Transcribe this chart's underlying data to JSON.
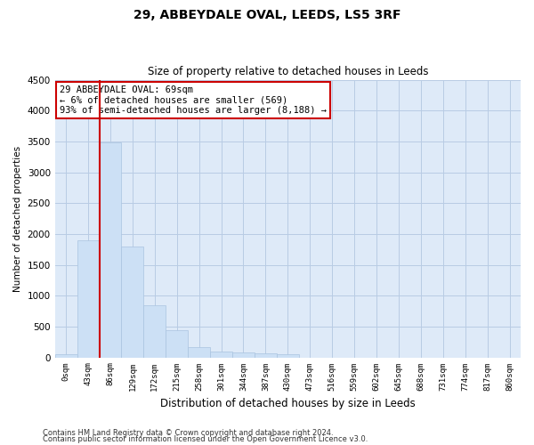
{
  "title": "29, ABBEYDALE OVAL, LEEDS, LS5 3RF",
  "subtitle": "Size of property relative to detached houses in Leeds",
  "xlabel": "Distribution of detached houses by size in Leeds",
  "ylabel": "Number of detached properties",
  "bar_color": "#cce0f5",
  "bar_edge_color": "#aac4e0",
  "grid_color": "#c8d4e8",
  "background_color": "#deeaf8",
  "vline_color": "#cc0000",
  "annotation_text": "29 ABBEYDALE OVAL: 69sqm\n← 6% of detached houses are smaller (569)\n93% of semi-detached houses are larger (8,188) →",
  "annotation_box_color": "#ffffff",
  "annotation_border_color": "#cc0000",
  "categories": [
    "0sqm",
    "43sqm",
    "86sqm",
    "129sqm",
    "172sqm",
    "215sqm",
    "258sqm",
    "301sqm",
    "344sqm",
    "387sqm",
    "430sqm",
    "473sqm",
    "516sqm",
    "559sqm",
    "602sqm",
    "645sqm",
    "688sqm",
    "731sqm",
    "774sqm",
    "817sqm",
    "860sqm"
  ],
  "values": [
    50,
    1900,
    3480,
    1800,
    850,
    440,
    160,
    100,
    80,
    65,
    55,
    0,
    0,
    0,
    0,
    0,
    0,
    0,
    0,
    0,
    0
  ],
  "ylim": [
    0,
    4500
  ],
  "yticks": [
    0,
    500,
    1000,
    1500,
    2000,
    2500,
    3000,
    3500,
    4000,
    4500
  ],
  "footer1": "Contains HM Land Registry data © Crown copyright and database right 2024.",
  "footer2": "Contains public sector information licensed under the Open Government Licence v3.0."
}
